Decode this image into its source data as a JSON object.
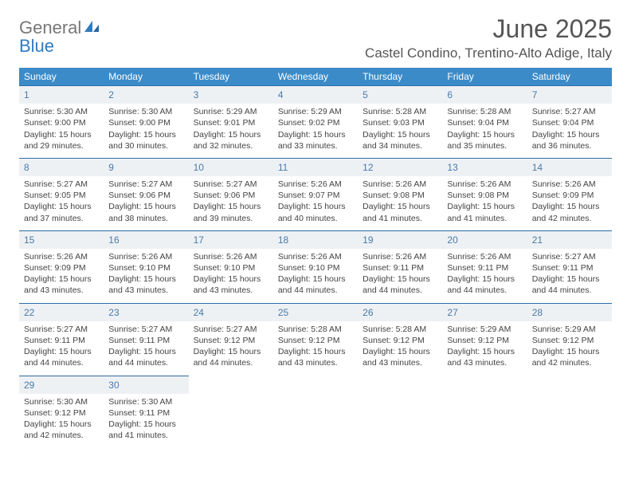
{
  "logo": {
    "general": "General",
    "blue": "Blue"
  },
  "title": "June 2025",
  "location": "Castel Condino, Trentino-Alto Adige, Italy",
  "colors": {
    "header_bg": "#3b8bc9",
    "header_border": "#2e6ea8",
    "daynum_bg": "#eef1f4",
    "daynum_color": "#4a7aa8",
    "text": "#444444",
    "accent": "#2e7cc1"
  },
  "weekdays": [
    "Sunday",
    "Monday",
    "Tuesday",
    "Wednesday",
    "Thursday",
    "Friday",
    "Saturday"
  ],
  "weeks": [
    [
      {
        "n": "1",
        "sr": "5:30 AM",
        "ss": "9:00 PM",
        "dl": "15 hours and 29 minutes."
      },
      {
        "n": "2",
        "sr": "5:30 AM",
        "ss": "9:00 PM",
        "dl": "15 hours and 30 minutes."
      },
      {
        "n": "3",
        "sr": "5:29 AM",
        "ss": "9:01 PM",
        "dl": "15 hours and 32 minutes."
      },
      {
        "n": "4",
        "sr": "5:29 AM",
        "ss": "9:02 PM",
        "dl": "15 hours and 33 minutes."
      },
      {
        "n": "5",
        "sr": "5:28 AM",
        "ss": "9:03 PM",
        "dl": "15 hours and 34 minutes."
      },
      {
        "n": "6",
        "sr": "5:28 AM",
        "ss": "9:04 PM",
        "dl": "15 hours and 35 minutes."
      },
      {
        "n": "7",
        "sr": "5:27 AM",
        "ss": "9:04 PM",
        "dl": "15 hours and 36 minutes."
      }
    ],
    [
      {
        "n": "8",
        "sr": "5:27 AM",
        "ss": "9:05 PM",
        "dl": "15 hours and 37 minutes."
      },
      {
        "n": "9",
        "sr": "5:27 AM",
        "ss": "9:06 PM",
        "dl": "15 hours and 38 minutes."
      },
      {
        "n": "10",
        "sr": "5:27 AM",
        "ss": "9:06 PM",
        "dl": "15 hours and 39 minutes."
      },
      {
        "n": "11",
        "sr": "5:26 AM",
        "ss": "9:07 PM",
        "dl": "15 hours and 40 minutes."
      },
      {
        "n": "12",
        "sr": "5:26 AM",
        "ss": "9:08 PM",
        "dl": "15 hours and 41 minutes."
      },
      {
        "n": "13",
        "sr": "5:26 AM",
        "ss": "9:08 PM",
        "dl": "15 hours and 41 minutes."
      },
      {
        "n": "14",
        "sr": "5:26 AM",
        "ss": "9:09 PM",
        "dl": "15 hours and 42 minutes."
      }
    ],
    [
      {
        "n": "15",
        "sr": "5:26 AM",
        "ss": "9:09 PM",
        "dl": "15 hours and 43 minutes."
      },
      {
        "n": "16",
        "sr": "5:26 AM",
        "ss": "9:10 PM",
        "dl": "15 hours and 43 minutes."
      },
      {
        "n": "17",
        "sr": "5:26 AM",
        "ss": "9:10 PM",
        "dl": "15 hours and 43 minutes."
      },
      {
        "n": "18",
        "sr": "5:26 AM",
        "ss": "9:10 PM",
        "dl": "15 hours and 44 minutes."
      },
      {
        "n": "19",
        "sr": "5:26 AM",
        "ss": "9:11 PM",
        "dl": "15 hours and 44 minutes."
      },
      {
        "n": "20",
        "sr": "5:26 AM",
        "ss": "9:11 PM",
        "dl": "15 hours and 44 minutes."
      },
      {
        "n": "21",
        "sr": "5:27 AM",
        "ss": "9:11 PM",
        "dl": "15 hours and 44 minutes."
      }
    ],
    [
      {
        "n": "22",
        "sr": "5:27 AM",
        "ss": "9:11 PM",
        "dl": "15 hours and 44 minutes."
      },
      {
        "n": "23",
        "sr": "5:27 AM",
        "ss": "9:11 PM",
        "dl": "15 hours and 44 minutes."
      },
      {
        "n": "24",
        "sr": "5:27 AM",
        "ss": "9:12 PM",
        "dl": "15 hours and 44 minutes."
      },
      {
        "n": "25",
        "sr": "5:28 AM",
        "ss": "9:12 PM",
        "dl": "15 hours and 43 minutes."
      },
      {
        "n": "26",
        "sr": "5:28 AM",
        "ss": "9:12 PM",
        "dl": "15 hours and 43 minutes."
      },
      {
        "n": "27",
        "sr": "5:29 AM",
        "ss": "9:12 PM",
        "dl": "15 hours and 43 minutes."
      },
      {
        "n": "28",
        "sr": "5:29 AM",
        "ss": "9:12 PM",
        "dl": "15 hours and 42 minutes."
      }
    ],
    [
      {
        "n": "29",
        "sr": "5:30 AM",
        "ss": "9:12 PM",
        "dl": "15 hours and 42 minutes."
      },
      {
        "n": "30",
        "sr": "5:30 AM",
        "ss": "9:11 PM",
        "dl": "15 hours and 41 minutes."
      }
    ]
  ],
  "labels": {
    "sunrise": "Sunrise: ",
    "sunset": "Sunset: ",
    "daylight": "Daylight: "
  }
}
